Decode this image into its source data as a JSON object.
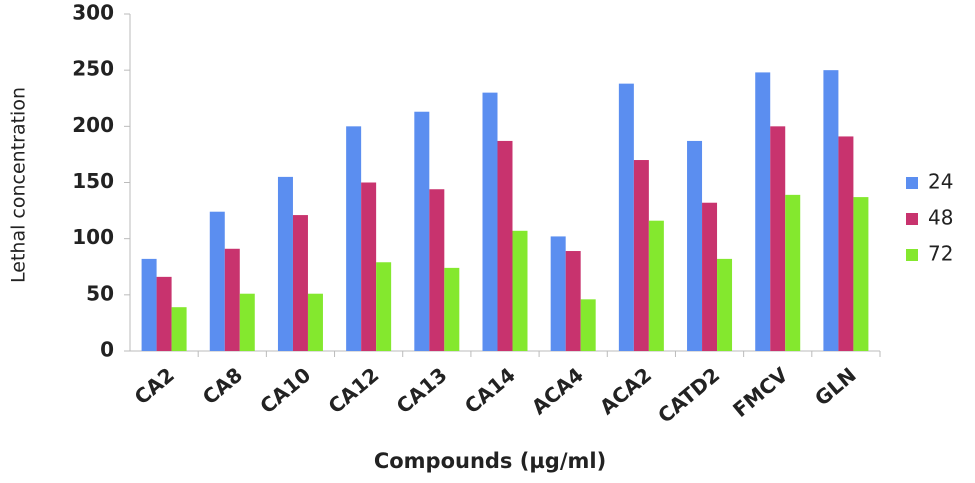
{
  "chart_data": {
    "type": "bar",
    "x_label": "Compounds (µg/ml)",
    "y_label": "Lethal concentration",
    "categories": [
      "CA2",
      "CA8",
      "CA10",
      "CA12",
      "CA13",
      "CA14",
      "ACA4",
      "ACA2",
      "CATD2",
      "FMCV",
      "GLN"
    ],
    "series": [
      {
        "name": "24",
        "color": "#5b8ef0",
        "values": [
          82,
          124,
          155,
          200,
          213,
          230,
          102,
          238,
          187,
          248,
          250
        ]
      },
      {
        "name": "48",
        "color": "#c8336e",
        "values": [
          66,
          91,
          121,
          150,
          144,
          187,
          89,
          170,
          132,
          200,
          191
        ]
      },
      {
        "name": "72",
        "color": "#84e82e",
        "values": [
          39,
          51,
          51,
          79,
          74,
          107,
          46,
          116,
          82,
          139,
          137
        ]
      }
    ],
    "ylim": [
      0,
      300
    ],
    "yticks": [
      0,
      50,
      100,
      150,
      200,
      250,
      300
    ],
    "grid": false,
    "legend": "right"
  }
}
